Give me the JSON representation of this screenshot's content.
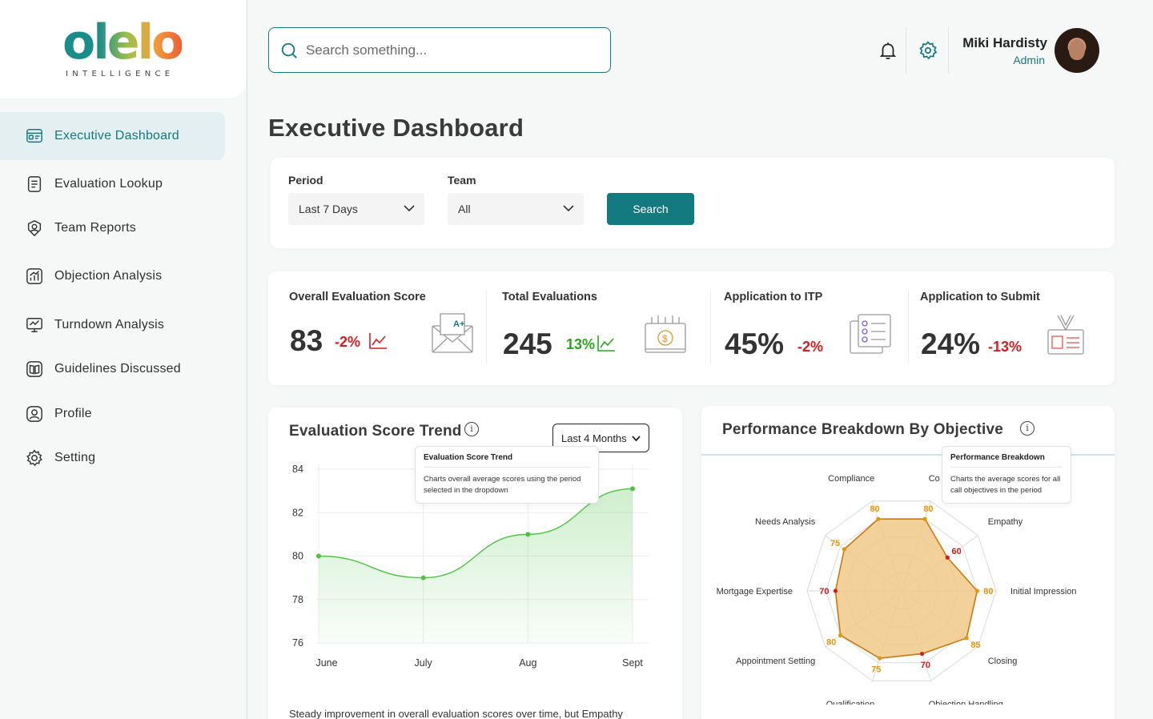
{
  "logo": {
    "word": "olelo",
    "sub": "INTELLIGENCE"
  },
  "sidebar": {
    "items": [
      {
        "label": "Executive Dashboard",
        "icon": "dashboard-icon",
        "active": true
      },
      {
        "label": "Evaluation Lookup",
        "icon": "clipboard-icon"
      },
      {
        "label": "Team Reports",
        "icon": "team-icon"
      },
      {
        "label": "Objection Analysis",
        "icon": "analytics-icon"
      },
      {
        "label": "Turndown  Analysis",
        "icon": "presentation-icon"
      },
      {
        "label": "Guidelines Discussed",
        "icon": "book-icon"
      },
      {
        "label": "Profile",
        "icon": "profile-icon"
      },
      {
        "label": "Setting",
        "icon": "gear-icon"
      }
    ]
  },
  "header": {
    "search_placeholder": "Search something...",
    "user_name": "Miki Hardisty",
    "user_role": "Admin"
  },
  "page_title": "Executive Dashboard",
  "filters": {
    "period_label": "Period",
    "period_value": "Last 7 Days",
    "team_label": "Team",
    "team_value": "All",
    "search_label": "Search"
  },
  "kpis": [
    {
      "title": "Overall Evaluation Score",
      "value": "83",
      "delta": "-2%",
      "trend": "negative"
    },
    {
      "title": "Total Evaluations",
      "value": "245",
      "delta": "13%",
      "trend": "positive"
    },
    {
      "title": "Application to ITP",
      "value": "45%",
      "delta": "-2%",
      "trend": "negative"
    },
    {
      "title": "Application to Submit",
      "value": "24%",
      "delta": "-13%",
      "trend": "negative"
    }
  ],
  "trend_card": {
    "title": "Evaluation Score Trend",
    "range_label": "Last 4 Months",
    "tooltip_title": "Evaluation Score Trend",
    "tooltip_body": "Charts overall average scores using the period selected in the dropdown",
    "footer": "Steady improvement in overall evaluation scores over time, but Empathy"
  },
  "radar_card": {
    "title": "Performance Breakdown By Objective",
    "tooltip_title": "Performance Breakdown",
    "tooltip_body": "Charts the average scores for all call objectives in the period"
  },
  "colors": {
    "accent": "#137a80",
    "positive": "#2aa51f",
    "negative": "#d11e1e",
    "radar_fill": "#f0c98a",
    "radar_stroke": "#c97a12"
  },
  "chart_data": [
    {
      "type": "area",
      "x": [
        "June",
        "July",
        "Aug",
        "Sept"
      ],
      "values": [
        80,
        79,
        81,
        83.1
      ],
      "ylim": [
        76,
        84
      ],
      "yticks": [
        76,
        78,
        80,
        82,
        84
      ],
      "grid": true
    },
    {
      "type": "radar",
      "categories": [
        "Compliance",
        "Co",
        "Empathy",
        "Initial Impression",
        "Closing",
        "Objection Handling",
        "Qualification",
        "Appointment Setting",
        "Mortgage Expertise",
        "Needs Analysis"
      ],
      "values": [
        80,
        80,
        60,
        80,
        85,
        70,
        75,
        80,
        70,
        75
      ],
      "rlim": [
        0,
        100
      ]
    }
  ]
}
